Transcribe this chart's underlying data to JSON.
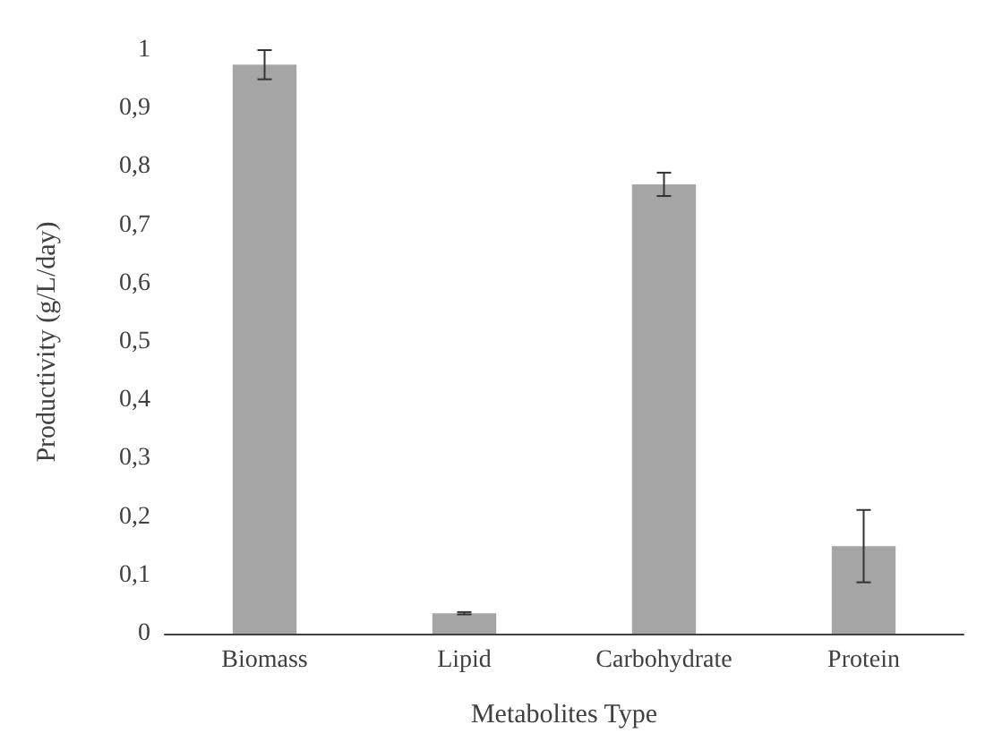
{
  "chart_data": {
    "type": "bar",
    "xlabel": "Metabolites Type",
    "ylabel": "Productivity (g/L/day)",
    "categories": [
      "Biomass",
      "Lipid",
      "Carbohydrate",
      "Protein"
    ],
    "values": [
      0.975,
      0.035,
      0.77,
      0.15
    ],
    "errors": [
      0.025,
      0.002,
      0.02,
      0.062
    ],
    "color": "#a5a5a5",
    "ylim": [
      0,
      1
    ],
    "yticks": [
      {
        "value": 0,
        "label": "0"
      },
      {
        "value": 0.1,
        "label": "0,1"
      },
      {
        "value": 0.2,
        "label": "0,2"
      },
      {
        "value": 0.3,
        "label": "0,3"
      },
      {
        "value": 0.4,
        "label": "0,4"
      },
      {
        "value": 0.5,
        "label": "0,5"
      },
      {
        "value": 0.6,
        "label": "0,6"
      },
      {
        "value": 0.7,
        "label": "0,7"
      },
      {
        "value": 0.8,
        "label": "0,8"
      },
      {
        "value": 0.9,
        "label": "0,9"
      },
      {
        "value": 1,
        "label": "1"
      }
    ],
    "grid": false
  }
}
